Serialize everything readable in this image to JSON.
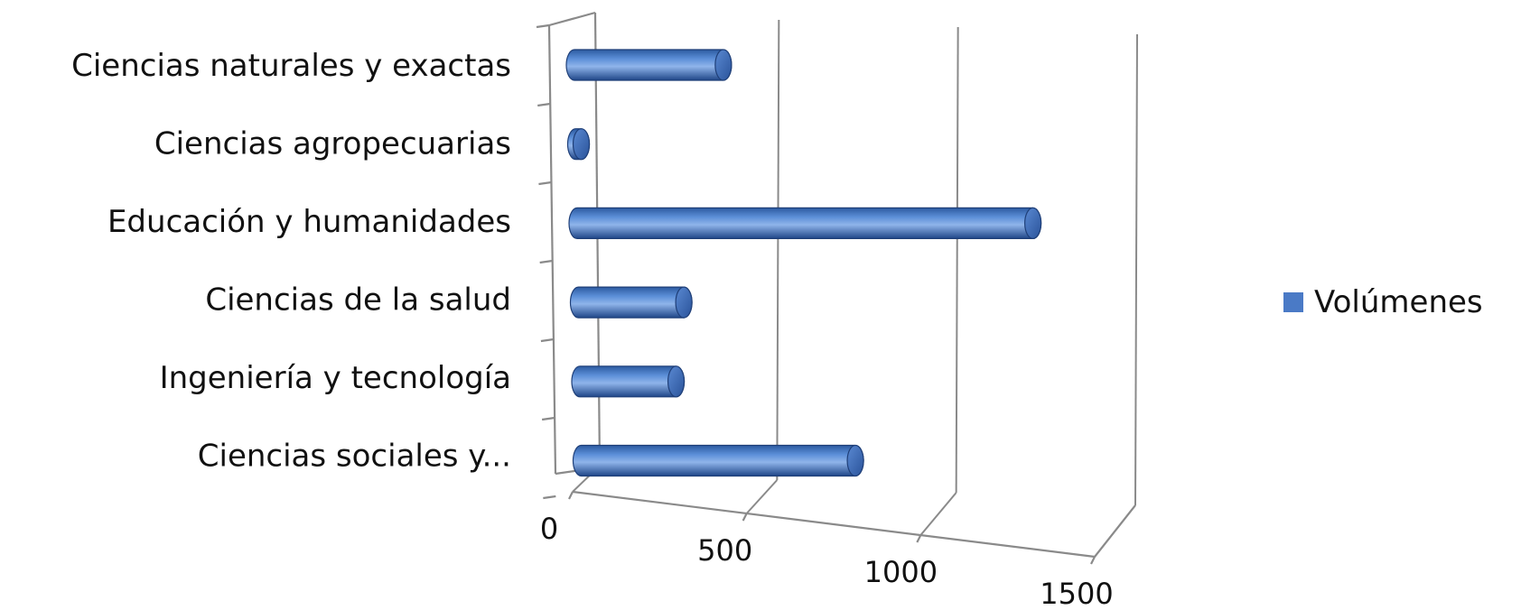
{
  "chart_data": {
    "type": "bar",
    "orientation": "horizontal",
    "style": "3d-cylinder",
    "categories": [
      "Ciencias naturales y exactas",
      "Ciencias agropecuarias",
      "Educación y humanidades",
      "Ciencias de la salud",
      "Ingeniería y tecnología",
      "Ciencias sociales y..."
    ],
    "series": [
      {
        "name": "Volúmenes",
        "color": "#4a7ac6",
        "values": [
          410,
          15,
          1255,
          290,
          265,
          755
        ]
      }
    ],
    "xticks": [
      "0",
      "500",
      "1000",
      "1500"
    ],
    "xlim": [
      0,
      1500
    ],
    "grid": true,
    "legend": {
      "position": "right"
    }
  }
}
